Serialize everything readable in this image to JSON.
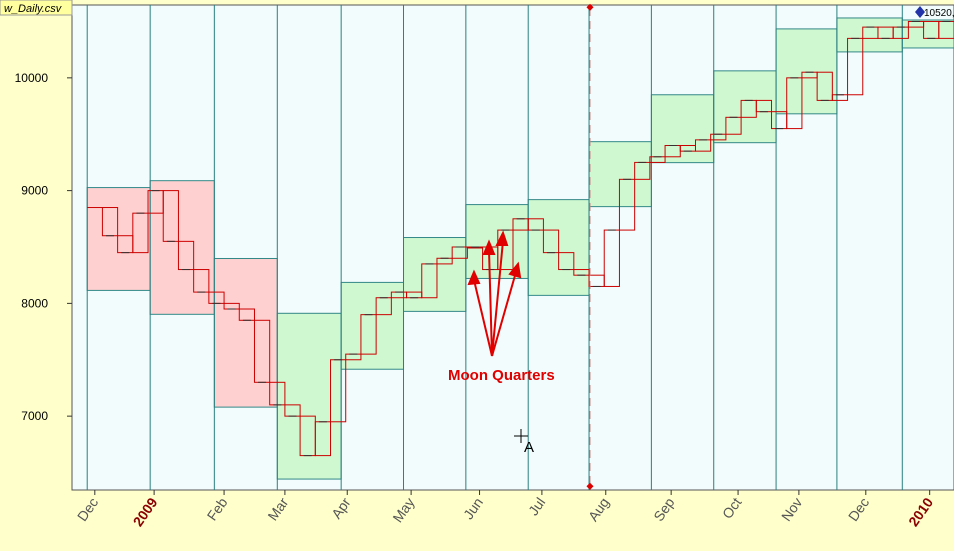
{
  "chart_data": {
    "type": "boxes",
    "title": "w_Daily.csv",
    "last_label": "10520,",
    "annotation": "Moon Quarters",
    "cursor_label": "A",
    "xlim": [
      -1,
      57
    ],
    "ylim": [
      6345,
      10646
    ],
    "yticks": [
      7000,
      8000,
      9000,
      10000
    ],
    "xticks": [
      {
        "value": 0.5,
        "label": "Dec"
      },
      {
        "value": 4.4,
        "label": "2009"
      },
      {
        "value": 9.0,
        "label": "Feb"
      },
      {
        "value": 13.0,
        "label": "Mar"
      },
      {
        "value": 17.1,
        "label": "Apr"
      },
      {
        "value": 21.3,
        "label": "May"
      },
      {
        "value": 25.8,
        "label": "Jun"
      },
      {
        "value": 29.9,
        "label": "Jul"
      },
      {
        "value": 34.1,
        "label": "Aug"
      },
      {
        "value": 38.4,
        "label": "Sep"
      },
      {
        "value": 42.8,
        "label": "Oct"
      },
      {
        "value": 46.8,
        "label": "Nov"
      },
      {
        "value": 51.2,
        "label": "Dec"
      },
      {
        "value": 55.4,
        "label": "2010"
      }
    ],
    "periods": {
      "starts": [
        0,
        4.14,
        8.36,
        12.5,
        16.7,
        20.8,
        24.9,
        29.0,
        33.0,
        37.1,
        41.2,
        45.3,
        49.3,
        53.6
      ],
      "ends": [
        4.14,
        8.36,
        12.5,
        16.7,
        20.8,
        24.9,
        29.0,
        33.0,
        37.1,
        41.2,
        45.3,
        49.3,
        53.6,
        57
      ],
      "lows": [
        8115,
        7903,
        7080,
        6442,
        7416,
        7929,
        8221,
        8071,
        8858,
        9248,
        9425,
        9681,
        10230,
        10265
      ],
      "highs": [
        9027,
        9088,
        8398,
        7912,
        8186,
        8584,
        8876,
        8920,
        9434,
        9850,
        10062,
        10434,
        10531,
        10513
      ],
      "colors": [
        "#ffd0d0",
        "#ffd0d0",
        "#ffd0d0",
        "#d0f8d0",
        "#d0f8d0",
        "#d0f8d0",
        "#d0f8d0",
        "#d0f8d0",
        "#d0f8d0",
        "#d0f8d0",
        "#d0f8d0",
        "#d0f8d0",
        "#d0f8d0",
        "#d0f8d0"
      ]
    },
    "weekly": {
      "color": "#cc0000",
      "values": [
        8850,
        8600,
        8450,
        8800,
        9000,
        8550,
        8300,
        8100,
        8000,
        7950,
        7850,
        7300,
        7100,
        7000,
        6650,
        6950,
        7500,
        7550,
        7900,
        8050,
        8100,
        8050,
        8350,
        8400,
        8500,
        8500,
        8300,
        8650,
        8750,
        8650,
        8450,
        8300,
        8250,
        8150,
        8650,
        9100,
        9250,
        9300,
        9400,
        9350,
        9450,
        9500,
        9650,
        9800,
        9700,
        9550,
        10000,
        10050,
        9800,
        9850,
        10350,
        10450,
        10350,
        10450,
        10500,
        10350,
        10500
      ]
    }
  }
}
